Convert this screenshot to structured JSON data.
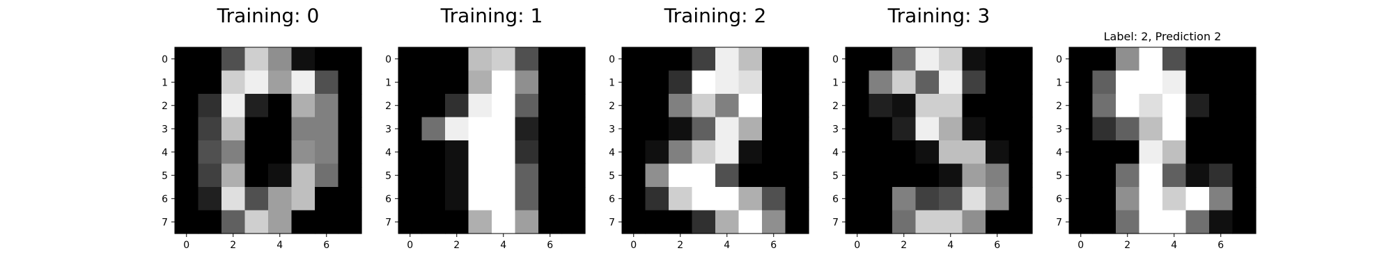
{
  "chart_data": [
    {
      "type": "heatmap",
      "title": "Training: 0",
      "colormap": "gray",
      "vmin": 0,
      "vmax": 16,
      "x_ticks": [
        0,
        2,
        4,
        6
      ],
      "y_ticks": [
        0,
        1,
        2,
        3,
        4,
        5,
        6,
        7
      ],
      "values": [
        [
          0,
          0,
          5,
          13,
          9,
          1,
          0,
          0
        ],
        [
          0,
          0,
          13,
          15,
          10,
          15,
          5,
          0
        ],
        [
          0,
          3,
          15,
          2,
          0,
          11,
          8,
          0
        ],
        [
          0,
          4,
          12,
          0,
          0,
          8,
          8,
          0
        ],
        [
          0,
          5,
          8,
          0,
          0,
          9,
          8,
          0
        ],
        [
          0,
          4,
          11,
          0,
          1,
          12,
          7,
          0
        ],
        [
          0,
          2,
          14,
          5,
          10,
          12,
          0,
          0
        ],
        [
          0,
          0,
          6,
          13,
          10,
          0,
          0,
          0
        ]
      ]
    },
    {
      "type": "heatmap",
      "title": "Training: 1",
      "colormap": "gray",
      "vmin": 0,
      "vmax": 16,
      "x_ticks": [
        0,
        2,
        4,
        6
      ],
      "y_ticks": [
        0,
        1,
        2,
        3,
        4,
        5,
        6,
        7
      ],
      "values": [
        [
          0,
          0,
          0,
          12,
          13,
          5,
          0,
          0
        ],
        [
          0,
          0,
          0,
          11,
          16,
          9,
          0,
          0
        ],
        [
          0,
          0,
          3,
          15,
          16,
          6,
          0,
          0
        ],
        [
          0,
          7,
          15,
          16,
          16,
          2,
          0,
          0
        ],
        [
          0,
          0,
          1,
          16,
          16,
          3,
          0,
          0
        ],
        [
          0,
          0,
          1,
          16,
          16,
          6,
          0,
          0
        ],
        [
          0,
          0,
          1,
          16,
          16,
          6,
          0,
          0
        ],
        [
          0,
          0,
          0,
          11,
          16,
          10,
          0,
          0
        ]
      ]
    },
    {
      "type": "heatmap",
      "title": "Training: 2",
      "colormap": "gray",
      "vmin": 0,
      "vmax": 16,
      "x_ticks": [
        0,
        2,
        4,
        6
      ],
      "y_ticks": [
        0,
        1,
        2,
        3,
        4,
        5,
        6,
        7
      ],
      "values": [
        [
          0,
          0,
          0,
          4,
          15,
          12,
          0,
          0
        ],
        [
          0,
          0,
          3,
          16,
          15,
          14,
          0,
          0
        ],
        [
          0,
          0,
          8,
          13,
          8,
          16,
          0,
          0
        ],
        [
          0,
          0,
          1,
          6,
          15,
          11,
          0,
          0
        ],
        [
          0,
          1,
          8,
          13,
          15,
          1,
          0,
          0
        ],
        [
          0,
          9,
          16,
          16,
          5,
          0,
          0,
          0
        ],
        [
          0,
          3,
          13,
          16,
          16,
          11,
          5,
          0
        ],
        [
          0,
          0,
          0,
          3,
          11,
          16,
          9,
          0
        ]
      ]
    },
    {
      "type": "heatmap",
      "title": "Training: 3",
      "colormap": "gray",
      "vmin": 0,
      "vmax": 16,
      "x_ticks": [
        0,
        2,
        4,
        6
      ],
      "y_ticks": [
        0,
        1,
        2,
        3,
        4,
        5,
        6,
        7
      ],
      "values": [
        [
          0,
          0,
          7,
          15,
          13,
          1,
          0,
          0
        ],
        [
          0,
          8,
          13,
          6,
          15,
          4,
          0,
          0
        ],
        [
          0,
          2,
          1,
          13,
          13,
          0,
          0,
          0
        ],
        [
          0,
          0,
          2,
          15,
          11,
          1,
          0,
          0
        ],
        [
          0,
          0,
          0,
          1,
          12,
          12,
          1,
          0
        ],
        [
          0,
          0,
          0,
          0,
          1,
          10,
          8,
          0
        ],
        [
          0,
          0,
          8,
          4,
          5,
          14,
          9,
          0
        ],
        [
          0,
          0,
          7,
          13,
          13,
          9,
          0,
          0
        ]
      ]
    },
    {
      "type": "heatmap",
      "title": "Label: 2, Prediction 2",
      "colormap": "gray",
      "vmin": 0,
      "vmax": 16,
      "x_ticks": [
        0,
        2,
        4,
        6
      ],
      "y_ticks": [
        0,
        1,
        2,
        3,
        4,
        5,
        6,
        7
      ],
      "values": [
        [
          0,
          0,
          9,
          16,
          5,
          0,
          0,
          0
        ],
        [
          0,
          6,
          16,
          16,
          15,
          0,
          0,
          0
        ],
        [
          0,
          7,
          16,
          14,
          16,
          2,
          0,
          0
        ],
        [
          0,
          3,
          6,
          12,
          16,
          0,
          0,
          0
        ],
        [
          0,
          0,
          0,
          15,
          12,
          0,
          0,
          0
        ],
        [
          0,
          0,
          7,
          16,
          6,
          1,
          3,
          0
        ],
        [
          0,
          0,
          9,
          16,
          13,
          16,
          8,
          0
        ],
        [
          0,
          0,
          7,
          16,
          16,
          7,
          1,
          0
        ]
      ]
    }
  ]
}
